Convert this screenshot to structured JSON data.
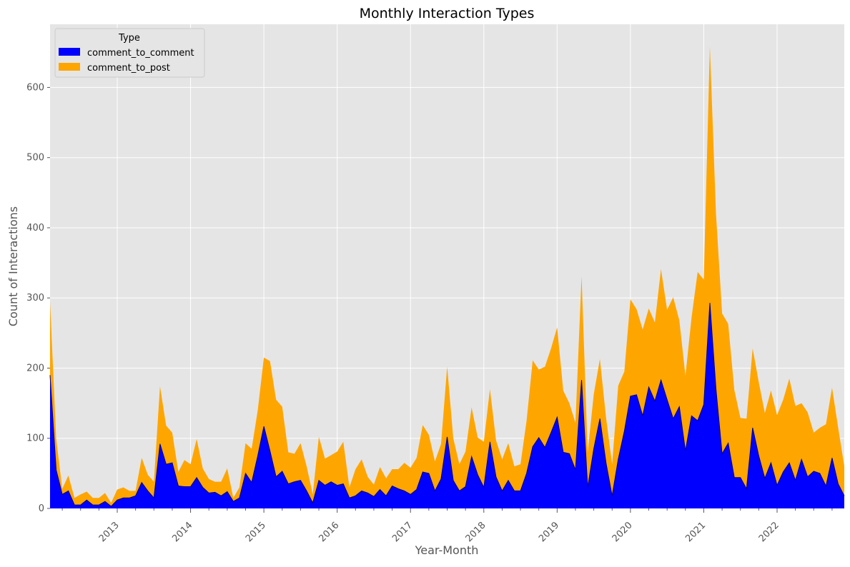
{
  "chart_data": {
    "type": "area",
    "stacked": true,
    "title": "Monthly Interaction Types",
    "xlabel": "Year-Month",
    "ylabel": "Count of Interactions",
    "x_start": "2012-02",
    "x_end": "2022-12",
    "x_tick_labels": [
      "2013",
      "2014",
      "2015",
      "2016",
      "2017",
      "2018",
      "2019",
      "2020",
      "2021",
      "2022"
    ],
    "y_ticks": [
      0,
      100,
      200,
      300,
      400,
      500,
      600
    ],
    "ylim": [
      0,
      690
    ],
    "grid": true,
    "legend": {
      "title": "Type",
      "placement": "upper-left"
    },
    "series": [
      {
        "name": "comment_to_comment",
        "color": "#0000ff",
        "values": [
          190,
          55,
          20,
          25,
          5,
          5,
          12,
          5,
          5,
          10,
          3,
          12,
          15,
          15,
          18,
          37,
          25,
          15,
          92,
          63,
          65,
          32,
          31,
          31,
          44,
          30,
          22,
          23,
          18,
          24,
          10,
          15,
          50,
          37,
          75,
          117,
          82,
          45,
          53,
          35,
          38,
          40,
          25,
          8,
          40,
          33,
          38,
          33,
          35,
          15,
          18,
          25,
          22,
          17,
          27,
          18,
          32,
          28,
          25,
          20,
          27,
          52,
          50,
          25,
          42,
          102,
          40,
          25,
          31,
          74,
          48,
          30,
          95,
          45,
          25,
          40,
          25,
          25,
          50,
          88,
          101,
          87,
          108,
          130,
          80,
          78,
          55,
          183,
          30,
          85,
          128,
          65,
          18,
          70,
          110,
          160,
          162,
          132,
          173,
          153,
          183,
          155,
          128,
          145,
          82,
          132,
          125,
          148,
          293,
          170,
          78,
          93,
          44,
          44,
          28,
          115,
          75,
          43,
          65,
          33,
          52,
          65,
          40,
          70,
          45,
          53,
          50,
          32,
          72,
          35,
          18
        ]
      },
      {
        "name": "comment_to_post",
        "color": "#ffa500",
        "values": [
          105,
          45,
          8,
          22,
          10,
          15,
          12,
          10,
          10,
          12,
          5,
          15,
          15,
          10,
          7,
          35,
          23,
          23,
          82,
          55,
          43,
          20,
          38,
          32,
          55,
          27,
          20,
          15,
          20,
          33,
          5,
          15,
          43,
          48,
          65,
          98,
          128,
          110,
          92,
          45,
          40,
          53,
          35,
          12,
          62,
          38,
          38,
          48,
          60,
          15,
          38,
          45,
          23,
          17,
          32,
          25,
          24,
          28,
          40,
          38,
          45,
          67,
          55,
          42,
          50,
          100,
          60,
          38,
          50,
          70,
          53,
          65,
          75,
          52,
          45,
          53,
          35,
          38,
          75,
          123,
          97,
          115,
          120,
          128,
          88,
          72,
          67,
          148,
          50,
          78,
          85,
          65,
          45,
          105,
          85,
          138,
          122,
          123,
          112,
          112,
          158,
          128,
          173,
          123,
          107,
          140,
          212,
          178,
          365,
          250,
          200,
          170,
          125,
          85,
          100,
          113,
          105,
          93,
          103,
          100,
          103,
          120,
          106,
          80,
          92,
          55,
          65,
          88,
          100,
          80,
          42
        ]
      }
    ]
  }
}
